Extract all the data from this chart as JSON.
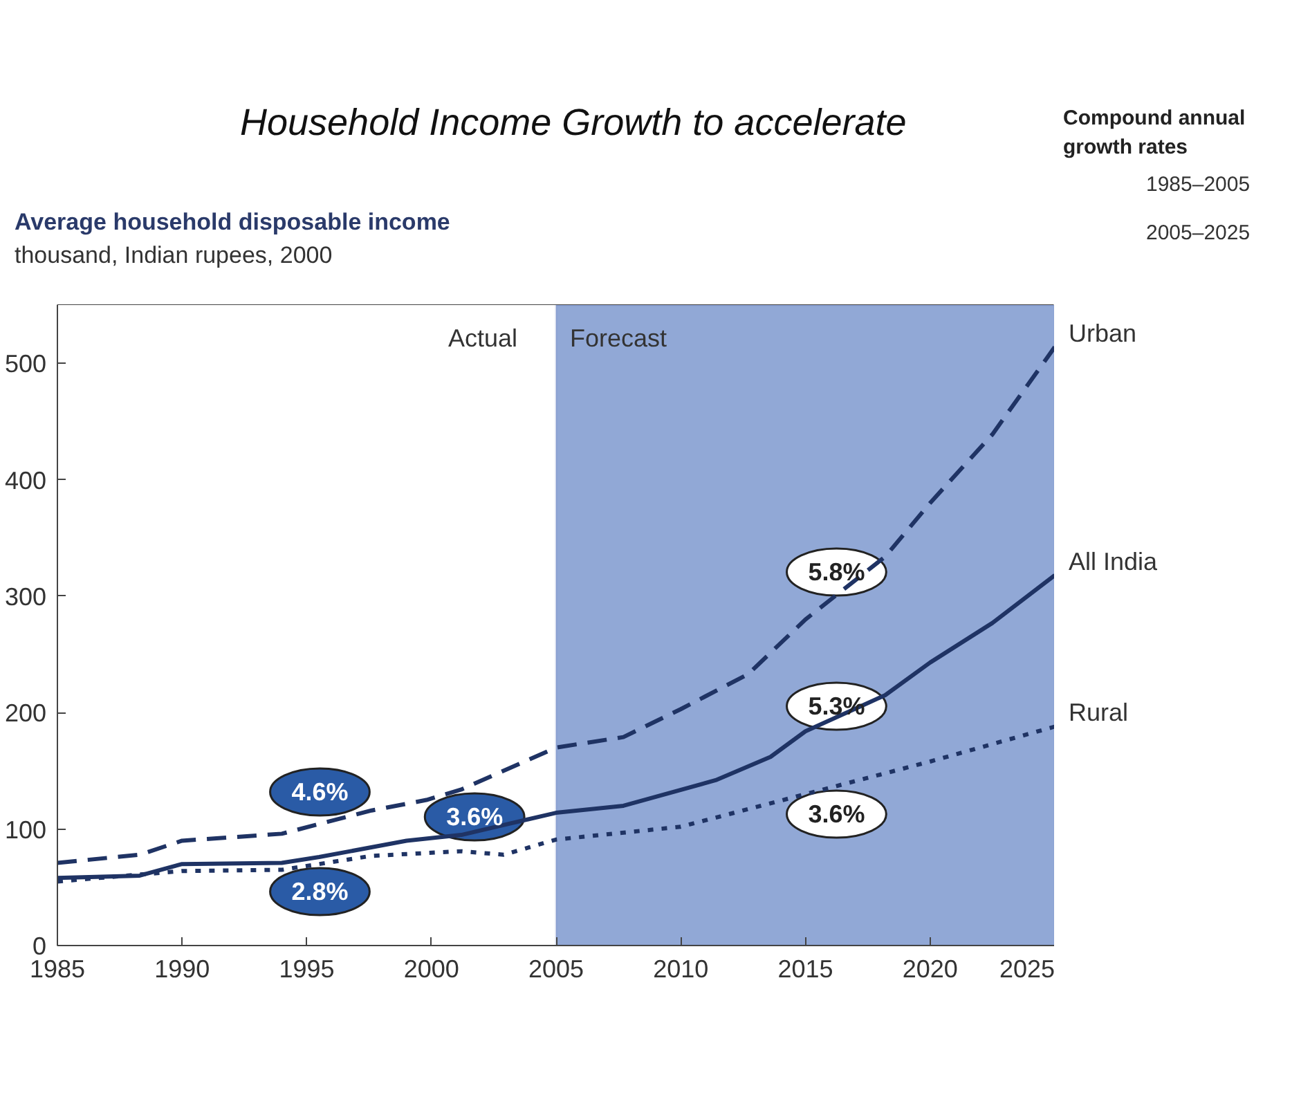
{
  "chart_data": {
    "type": "line",
    "title": "Household Income Growth to accelerate",
    "subtitle": "Average household disposable income",
    "ylabel": "thousand, Indian rupees, 2000",
    "legend_title": "Compound annual growth rates",
    "xlim": [
      1985,
      2025
    ],
    "xticks": [
      1985,
      1990,
      1995,
      2000,
      2005,
      2010,
      2015,
      2020,
      2025
    ],
    "ylim": [
      0,
      550
    ],
    "yticks": [
      0,
      100,
      200,
      300,
      400,
      500
    ],
    "legend": "top right",
    "series": [
      {
        "name": "Urban",
        "color": "#1f3364",
        "line_style": "dashed",
        "x": [
          1985,
          1988.3,
          1990,
          1994,
          1997.6,
          1999.8,
          2001.2,
          2005,
          2007.7,
          2010,
          2012.7,
          2015,
          2018.2,
          2020,
          2022.5,
          2025
        ],
        "values": [
          71,
          78,
          90,
          96,
          116,
          125,
          134,
          170,
          179,
          203,
          233,
          280,
          334,
          380,
          439,
          514
        ]
      },
      {
        "name": "All India",
        "color": "#1f3364",
        "line_style": "solid",
        "x": [
          1985,
          1988.3,
          1990,
          1994,
          1995.5,
          1999,
          2001.2,
          2003,
          2005,
          2007.7,
          2011.4,
          2013.6,
          2015,
          2018.2,
          2020,
          2022.5,
          2025
        ],
        "values": [
          58,
          60,
          70,
          71,
          76,
          90,
          95,
          104,
          114,
          120,
          142,
          162,
          184,
          215,
          243,
          277,
          318
        ]
      },
      {
        "name": "Rural",
        "color": "#1f3364",
        "line_style": "dotted",
        "x": [
          1985,
          1990,
          1994,
          1997.6,
          2001.2,
          2002.9,
          2005,
          2010,
          2015,
          2020,
          2025
        ],
        "values": [
          55,
          64,
          65,
          77,
          81,
          78,
          91,
          102,
          130,
          158,
          188
        ]
      }
    ],
    "bands": [
      {
        "axis": "x",
        "from": 1985,
        "to": 2005,
        "label": "Actual",
        "color": "#ffffff"
      },
      {
        "axis": "x",
        "from": 2005,
        "to": 2025,
        "label": "Forecast",
        "color": "#91a8d6"
      }
    ],
    "annotations": [
      "4.6%",
      "3.6%",
      "2.8%",
      "5.8%",
      "5.3%",
      "3.6%",
      "1985–2005",
      "2005–2025"
    ]
  }
}
